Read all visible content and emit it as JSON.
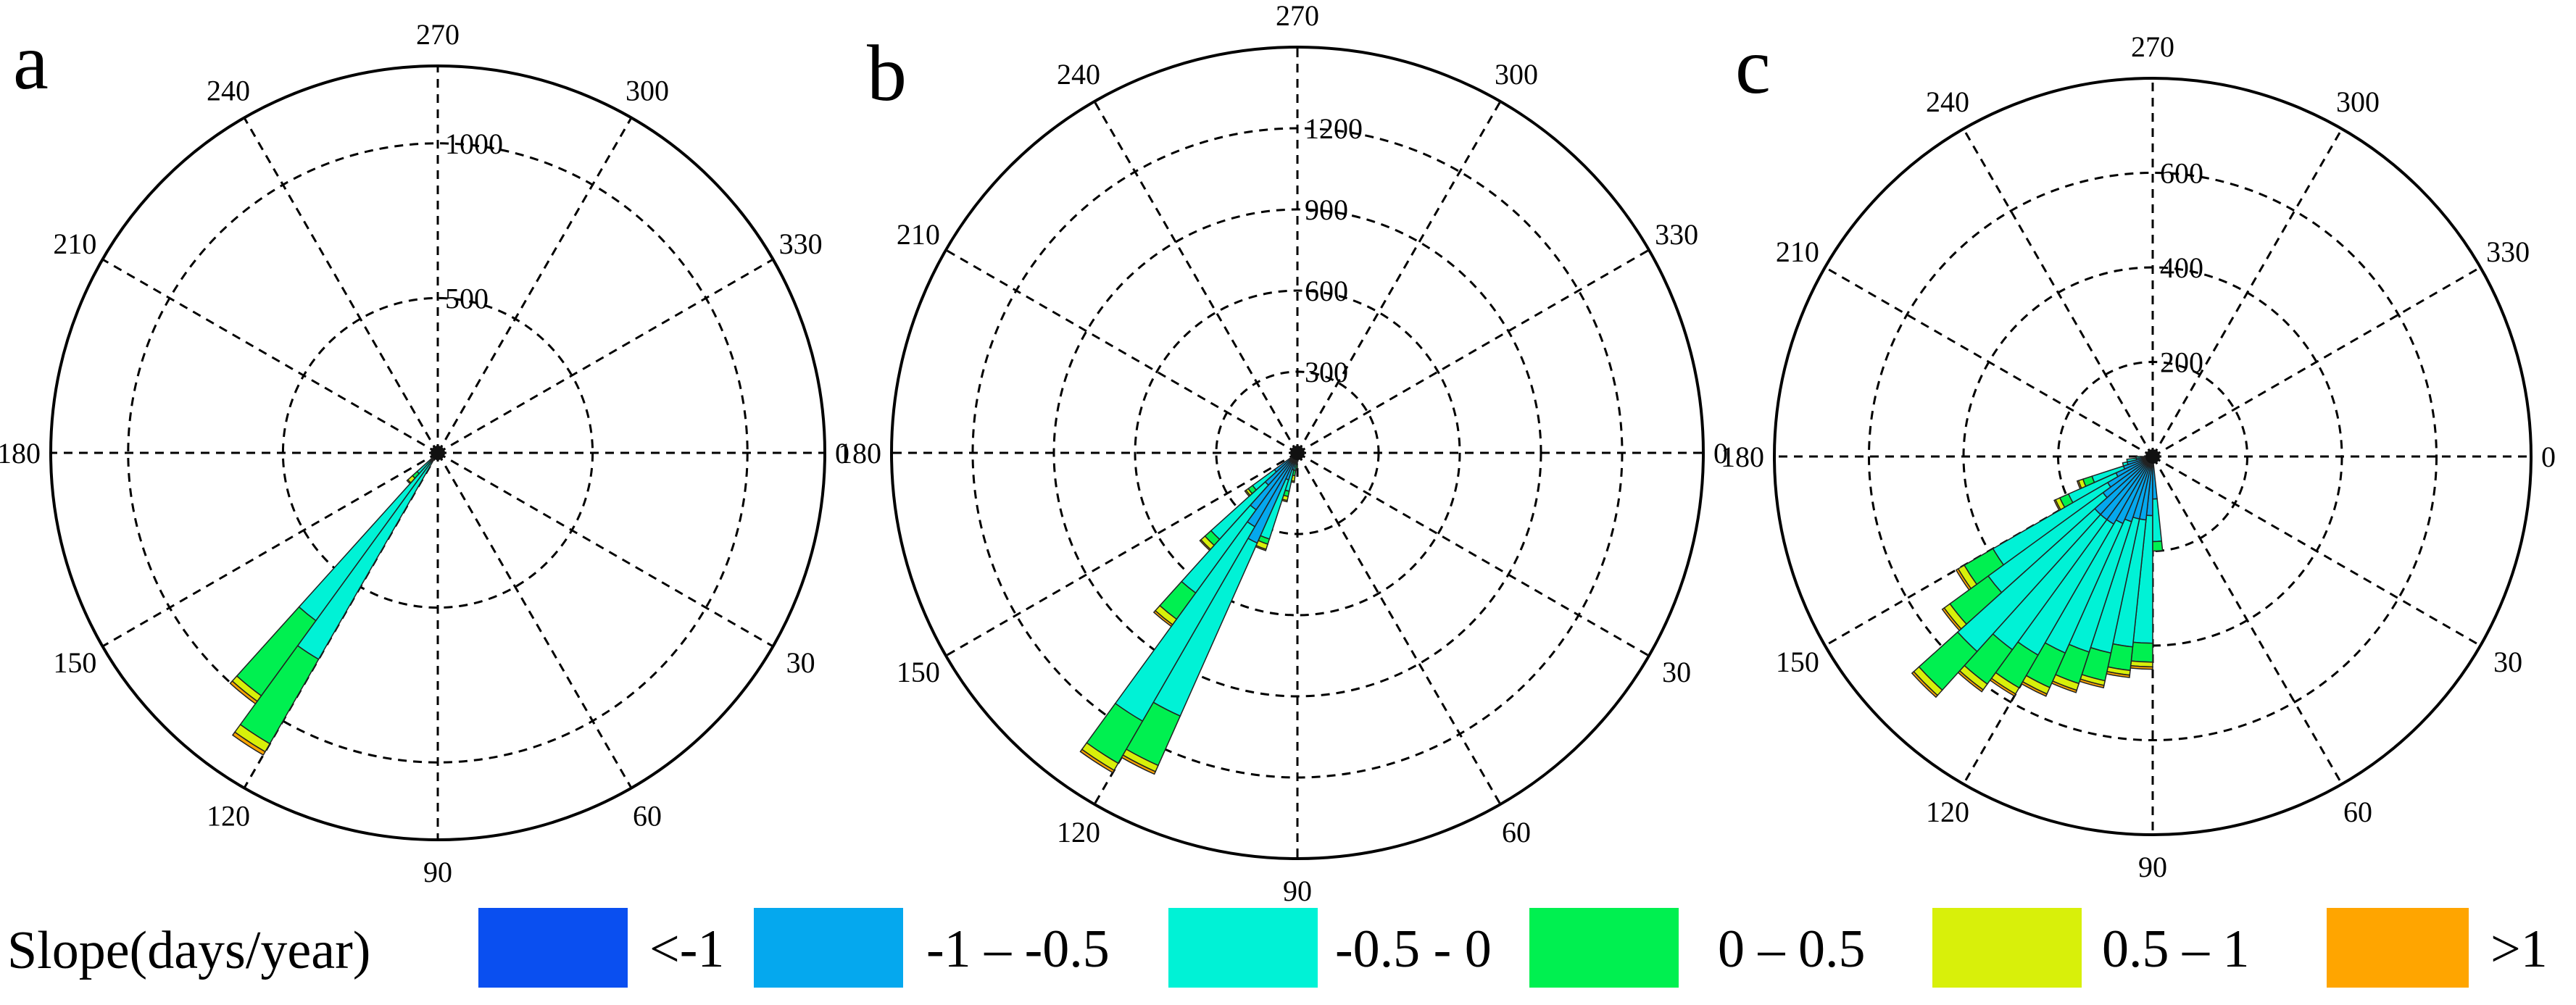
{
  "chart_data": [
    {
      "type": "polar-stacked-bar",
      "panel_label": "a",
      "angle_tick_labels": [
        "0",
        "30",
        "60",
        "90",
        "120",
        "150",
        "180",
        "210",
        "240",
        "270",
        "300",
        "330"
      ],
      "rmax": 1250,
      "radial_ticks": [
        500,
        1000
      ],
      "radial_tick_labels": [
        "500",
        "1000"
      ],
      "grid": true,
      "bins": [
        {
          "angle_start": 120,
          "angle_end": 126,
          "values": [
            5,
            15,
            750,
            315,
            30,
            12
          ]
        },
        {
          "angle_start": 126,
          "angle_end": 132,
          "values": [
            5,
            15,
            650,
            300,
            22,
            10
          ]
        },
        {
          "angle_start": 132,
          "angle_end": 138,
          "values": [
            2,
            8,
            80,
            20,
            20,
            4
          ]
        },
        {
          "angle_start": 84,
          "angle_end": 90,
          "values": [
            0,
            2,
            1,
            0,
            0,
            0
          ]
        },
        {
          "angle_start": 210,
          "angle_end": 216,
          "values": [
            0,
            3,
            1,
            0,
            0,
            0
          ]
        },
        {
          "angle_start": 300,
          "angle_end": 306,
          "values": [
            0,
            3,
            1,
            0,
            0,
            0
          ]
        },
        {
          "angle_start": 330,
          "angle_end": 336,
          "values": [
            0,
            3,
            1,
            0,
            0,
            0
          ]
        }
      ]
    },
    {
      "type": "polar-stacked-bar",
      "panel_label": "b",
      "angle_tick_labels": [
        "0",
        "30",
        "60",
        "90",
        "120",
        "150",
        "180",
        "210",
        "240",
        "270",
        "300",
        "330"
      ],
      "rmax": 1500,
      "radial_ticks": [
        300,
        600,
        900,
        1200
      ],
      "radial_tick_labels": [
        "300",
        "600",
        "900",
        "1200"
      ],
      "grid": true,
      "bins": [
        {
          "angle_start": 114,
          "angle_end": 120,
          "values": [
            15,
            350,
            700,
            200,
            25,
            10
          ]
        },
        {
          "angle_start": 120,
          "angle_end": 126,
          "values": [
            15,
            300,
            830,
            180,
            30,
            10
          ]
        },
        {
          "angle_start": 126,
          "angle_end": 132,
          "values": [
            10,
            250,
            380,
            120,
            25,
            8
          ]
        },
        {
          "angle_start": 132,
          "angle_end": 138,
          "values": [
            10,
            150,
            270,
            30,
            20,
            5
          ]
        },
        {
          "angle_start": 138,
          "angle_end": 144,
          "values": [
            5,
            100,
            100,
            20,
            10,
            5
          ]
        },
        {
          "angle_start": 108,
          "angle_end": 114,
          "values": [
            5,
            100,
            230,
            20,
            20,
            5
          ]
        },
        {
          "angle_start": 102,
          "angle_end": 108,
          "values": [
            5,
            60,
            80,
            20,
            15,
            5
          ]
        },
        {
          "angle_start": 96,
          "angle_end": 102,
          "values": [
            5,
            30,
            30,
            20,
            20,
            5
          ]
        },
        {
          "angle_start": 90,
          "angle_end": 96,
          "values": [
            3,
            20,
            20,
            15,
            0,
            0
          ]
        }
      ]
    },
    {
      "type": "polar-stacked-bar",
      "panel_label": "c",
      "angle_tick_labels": [
        "0",
        "30",
        "60",
        "90",
        "120",
        "150",
        "180",
        "210",
        "240",
        "270",
        "300",
        "330"
      ],
      "rmax": 800,
      "radial_ticks": [
        200,
        400,
        600
      ],
      "radial_tick_labels": [
        "200",
        "400",
        "600"
      ],
      "grid": true,
      "bins": [
        {
          "angle_start": 90,
          "angle_end": 96,
          "values": [
            15,
            110,
            270,
            40,
            10,
            5
          ]
        },
        {
          "angle_start": 96,
          "angle_end": 102,
          "values": [
            15,
            120,
            270,
            50,
            10,
            5
          ]
        },
        {
          "angle_start": 102,
          "angle_end": 108,
          "values": [
            15,
            120,
            290,
            60,
            10,
            5
          ]
        },
        {
          "angle_start": 108,
          "angle_end": 114,
          "values": [
            15,
            130,
            290,
            70,
            15,
            5
          ]
        },
        {
          "angle_start": 114,
          "angle_end": 120,
          "values": [
            15,
            140,
            300,
            80,
            15,
            5
          ]
        },
        {
          "angle_start": 120,
          "angle_end": 126,
          "values": [
            15,
            150,
            320,
            80,
            15,
            5
          ]
        },
        {
          "angle_start": 126,
          "angle_end": 132,
          "values": [
            15,
            150,
            340,
            90,
            15,
            5
          ]
        },
        {
          "angle_start": 132,
          "angle_end": 138,
          "values": [
            15,
            150,
            390,
            110,
            15,
            5
          ]
        },
        {
          "angle_start": 138,
          "angle_end": 144,
          "values": [
            10,
            120,
            300,
            100,
            15,
            5
          ]
        },
        {
          "angle_start": 144,
          "angle_end": 150,
          "values": [
            10,
            100,
            280,
            70,
            15,
            5
          ]
        },
        {
          "angle_start": 150,
          "angle_end": 156,
          "values": [
            5,
            80,
            110,
            20,
            10,
            3
          ]
        },
        {
          "angle_start": 156,
          "angle_end": 162,
          "values": [
            5,
            60,
            70,
            20,
            10,
            3
          ]
        },
        {
          "angle_start": 162,
          "angle_end": 168,
          "values": [
            5,
            50,
            10,
            0,
            0,
            0
          ]
        },
        {
          "angle_start": 168,
          "angle_end": 174,
          "values": [
            5,
            30,
            20,
            0,
            0,
            0
          ]
        },
        {
          "angle_start": 174,
          "angle_end": 180,
          "values": [
            5,
            20,
            10,
            0,
            0,
            0
          ]
        },
        {
          "angle_start": 84,
          "angle_end": 90,
          "values": [
            10,
            80,
            90,
            20,
            0,
            0
          ]
        }
      ]
    }
  ],
  "legend": {
    "title": "Slope(days/year)",
    "entries": [
      {
        "label": "<-1",
        "color": "#0a4ff0"
      },
      {
        "label": "-1 – -0.5",
        "color": "#05a8ee"
      },
      {
        "label": "-0.5 - 0",
        "color": "#00f2d6"
      },
      {
        "label": "0 – 0.5",
        "color": "#00f050"
      },
      {
        "label": "0.5 – 1",
        "color": "#d8f00a"
      },
      {
        "label": ">1",
        "color": "#ffa500"
      }
    ]
  }
}
